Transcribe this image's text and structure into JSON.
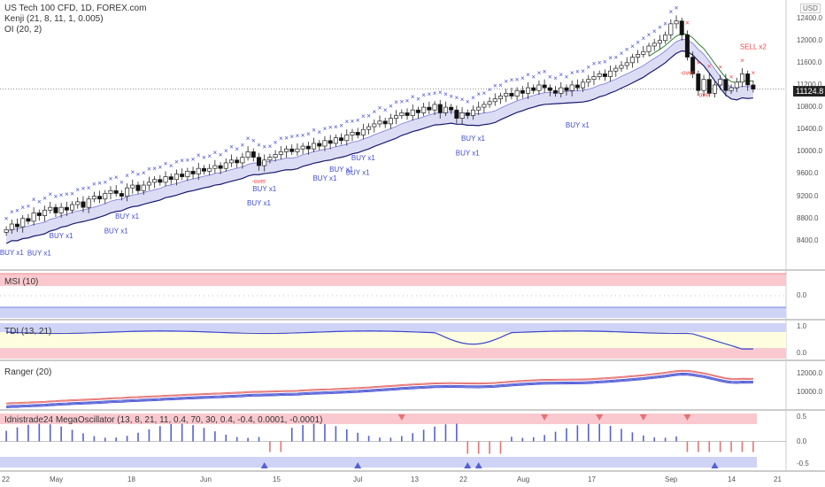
{
  "header": {
    "title": "US Tech 100 CFD, 1D, FOREX.com",
    "indicator1": "Kenji (21, 8, 11, 1, 0.005)",
    "indicator2": "OI (20, 2)"
  },
  "currency": "USD",
  "last_price": "11124.8",
  "colors": {
    "candle_up": "#333333",
    "candle_down": "#111111",
    "x_marker": "#3f4bd6",
    "sell_marker": "#f44",
    "band_fill": "#dcdcf5",
    "band_line": "#1a1a6e",
    "ma_line": "#2e7d32",
    "pane_red": "#f9c9cf",
    "pane_blue": "#cfd3f6",
    "pane_yellow": "#fffde0",
    "tdi_line": "#3b48c9",
    "ranger_red": "#e57373",
    "ranger_blue": "#5560d6"
  },
  "x_ticks": [
    "22",
    "May",
    "18",
    "Jun",
    "15",
    "Jul",
    "13",
    "22",
    "Aug",
    "17",
    "Sep",
    "14",
    "21"
  ],
  "panes": {
    "main": {
      "y_ticks": [
        "12400.0",
        "12000.0",
        "11600.0",
        "11200.0",
        "10800.0",
        "10400.0",
        "10000.0",
        "9600.0",
        "9200.0",
        "8800.0",
        "8400.0"
      ]
    },
    "msi": {
      "label": "MSI (10)",
      "y_ticks": [
        "0.0"
      ]
    },
    "tdi": {
      "label": "TDI (13, 21)",
      "y_ticks": [
        "1.0",
        "0.0"
      ]
    },
    "ranger": {
      "label": "Ranger (20)",
      "y_ticks": [
        "12000.0",
        "10000.0"
      ]
    },
    "osc": {
      "label": "Idnistrade24 MegaOscillator (13, 8, 21, 11, 0.4, 70, 30, 0.4, -0.4, 0.0001, -0.0001)",
      "y_ticks": [
        "0.5",
        "0.0",
        "-0.5"
      ]
    }
  },
  "annotations": [
    {
      "text": "BUY x1",
      "bar": 1
    },
    {
      "text": "BUY x1",
      "bar": 6
    },
    {
      "text": "BUY x1",
      "bar": 10
    },
    {
      "text": "BUY x1",
      "bar": 20
    },
    {
      "text": "BUY x1",
      "bar": 22
    },
    {
      "text": "BUY x1",
      "bar": 46
    },
    {
      "text": "BUY x1",
      "bar": 47
    },
    {
      "text": "BUY x1",
      "bar": 58
    },
    {
      "text": "BUY x1",
      "bar": 61
    },
    {
      "text": "BUY x1",
      "bar": 64
    },
    {
      "text": "BUY x1",
      "bar": 65
    },
    {
      "text": "BUY x1",
      "bar": 84
    },
    {
      "text": "BUY x1",
      "bar": 85
    },
    {
      "text": "BUY x1",
      "bar": 104
    },
    {
      "text": "-over",
      "bar": 46
    },
    {
      "text": "-over",
      "bar": 124
    },
    {
      "text": "-over",
      "bar": 127
    },
    {
      "text": "SELL x2",
      "bar": 136
    }
  ],
  "chart_data": {
    "type": "candlestick",
    "title": "US Tech 100 CFD, 1D, FOREX.com",
    "ylim": [
      8000,
      12600
    ],
    "close_series": [
      8600,
      8700,
      8650,
      8800,
      8750,
      8900,
      8850,
      8950,
      9000,
      8900,
      9000,
      8950,
      9050,
      9100,
      9000,
      9150,
      9200,
      9150,
      9250,
      9300,
      9250,
      9200,
      9350,
      9400,
      9300,
      9400,
      9450,
      9500,
      9450,
      9550,
      9500,
      9600,
      9550,
      9650,
      9600,
      9700,
      9650,
      9700,
      9750,
      9700,
      9800,
      9850,
      9800,
      9900,
      10000,
      9900,
      9750,
      9850,
      9900,
      9950,
      10000,
      10050,
      10000,
      10050,
      10100,
      10050,
      10150,
      10100,
      10200,
      10150,
      10250,
      10200,
      10300,
      10350,
      10300,
      10400,
      10450,
      10500,
      10550,
      10500,
      10600,
      10650,
      10700,
      10650,
      10750,
      10700,
      10800,
      10750,
      10850,
      10700,
      10800,
      10750,
      10600,
      10700,
      10650,
      10750,
      10800,
      10850,
      10900,
      10950,
      11000,
      11050,
      11000,
      11100,
      11050,
      11150,
      11100,
      11200,
      11150,
      11100,
      11050,
      11150,
      11100,
      11200,
      11150,
      11250,
      11300,
      11350,
      11400,
      11350,
      11450,
      11500,
      11550,
      11600,
      11700,
      11750,
      11800,
      11900,
      11950,
      12000,
      12100,
      12300,
      12350,
      12100,
      11700,
      11400,
      11100,
      11300,
      11050,
      11200,
      11300,
      11100,
      11150,
      11250,
      11400,
      11200,
      11124.8
    ],
    "ranges": {
      "msi": [
        -0.5,
        0.5
      ],
      "tdi": [
        -0.2,
        1.2
      ],
      "ranger": [
        8500,
        12800
      ],
      "osc": [
        -0.7,
        0.7
      ]
    }
  }
}
